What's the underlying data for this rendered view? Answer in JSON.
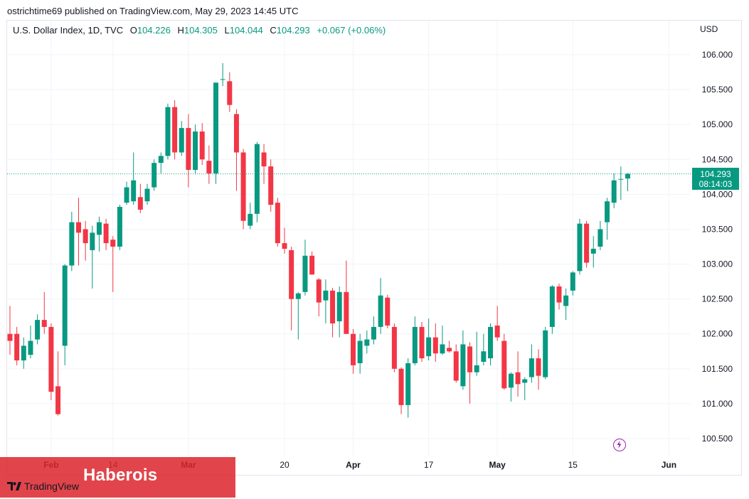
{
  "publisher": "ostrichtime69 published on TradingView.com, May 29, 2023 14:45 UTC",
  "legend": {
    "symbol": "U.S. Dollar Index, 1D, TVC",
    "o_label": "O",
    "open": "104.226",
    "h_label": "H",
    "high": "104.305",
    "l_label": "L",
    "low": "104.044",
    "c_label": "C",
    "close": "104.293",
    "change": "+0.067 (+0.06%)"
  },
  "currency": "USD",
  "last_price": {
    "value": "104.293",
    "countdown": "08:14:03"
  },
  "watermark": "Haberois",
  "logo_text": "TradingView",
  "colors": {
    "up": "#089981",
    "down": "#f23645",
    "grid": "#f0f3fa",
    "axis_text": "#131722"
  },
  "chart_data": {
    "type": "candlestick",
    "title": "U.S. Dollar Index, 1D, TVC",
    "ylabel": "USD",
    "ylim": [
      100.25,
      106.4
    ],
    "yticks": [
      106.0,
      105.5,
      105.0,
      104.5,
      104.0,
      103.5,
      103.0,
      102.5,
      102.0,
      101.5,
      101.0,
      100.5
    ],
    "ytick_labels": [
      "106.000",
      "105.500",
      "105.000",
      "104.500",
      "104.000",
      "103.500",
      "103.000",
      "102.500",
      "102.000",
      "101.500",
      "101.000",
      "100.500"
    ],
    "xtick_labels": [
      {
        "label": "Feb",
        "index": 6
      },
      {
        "label": "14",
        "index": 15
      },
      {
        "label": "Mar",
        "index": 26
      },
      {
        "label": "20",
        "index": 40
      },
      {
        "label": "Apr",
        "index": 50
      },
      {
        "label": "17",
        "index": 61
      },
      {
        "label": "May",
        "index": 71
      },
      {
        "label": "15",
        "index": 82
      },
      {
        "label": "Jun",
        "index": 96
      }
    ],
    "last_close": 104.293,
    "candles": [
      {
        "o": 102.0,
        "h": 102.4,
        "l": 101.7,
        "c": 101.9
      },
      {
        "o": 102.0,
        "h": 102.1,
        "l": 101.55,
        "c": 101.62
      },
      {
        "o": 101.62,
        "h": 101.95,
        "l": 101.5,
        "c": 101.83
      },
      {
        "o": 101.7,
        "h": 102.12,
        "l": 101.65,
        "c": 101.9
      },
      {
        "o": 101.92,
        "h": 102.28,
        "l": 101.85,
        "c": 102.2
      },
      {
        "o": 102.2,
        "h": 102.6,
        "l": 102.0,
        "c": 102.1
      },
      {
        "o": 102.1,
        "h": 102.15,
        "l": 101.05,
        "c": 101.17
      },
      {
        "o": 101.25,
        "h": 101.75,
        "l": 100.83,
        "c": 100.85
      },
      {
        "o": 101.83,
        "h": 103.0,
        "l": 101.55,
        "c": 102.98
      },
      {
        "o": 102.98,
        "h": 103.75,
        "l": 102.9,
        "c": 103.6
      },
      {
        "o": 103.6,
        "h": 103.95,
        "l": 102.98,
        "c": 103.45
      },
      {
        "o": 103.5,
        "h": 103.62,
        "l": 103.05,
        "c": 103.3
      },
      {
        "o": 103.2,
        "h": 103.55,
        "l": 102.65,
        "c": 103.45
      },
      {
        "o": 103.42,
        "h": 103.68,
        "l": 103.18,
        "c": 103.6
      },
      {
        "o": 103.58,
        "h": 103.65,
        "l": 103.2,
        "c": 103.3
      },
      {
        "o": 103.35,
        "h": 103.4,
        "l": 102.6,
        "c": 103.25
      },
      {
        "o": 103.25,
        "h": 103.85,
        "l": 103.2,
        "c": 103.82
      },
      {
        "o": 103.88,
        "h": 104.18,
        "l": 103.85,
        "c": 104.1
      },
      {
        "o": 103.9,
        "h": 104.6,
        "l": 103.85,
        "c": 104.2
      },
      {
        "o": 103.96,
        "h": 104.15,
        "l": 103.73,
        "c": 103.78
      },
      {
        "o": 103.9,
        "h": 104.15,
        "l": 103.85,
        "c": 104.08
      },
      {
        "o": 104.1,
        "h": 104.5,
        "l": 104.05,
        "c": 104.45
      },
      {
        "o": 104.45,
        "h": 104.6,
        "l": 104.3,
        "c": 104.55
      },
      {
        "o": 104.55,
        "h": 105.3,
        "l": 104.5,
        "c": 105.25
      },
      {
        "o": 105.25,
        "h": 105.35,
        "l": 104.5,
        "c": 104.6
      },
      {
        "o": 104.6,
        "h": 105.05,
        "l": 104.55,
        "c": 104.95
      },
      {
        "o": 104.95,
        "h": 105.15,
        "l": 104.1,
        "c": 104.35
      },
      {
        "o": 104.35,
        "h": 105.0,
        "l": 104.3,
        "c": 104.9
      },
      {
        "o": 104.9,
        "h": 105.02,
        "l": 104.42,
        "c": 104.5
      },
      {
        "o": 104.48,
        "h": 104.7,
        "l": 104.15,
        "c": 104.3
      },
      {
        "o": 104.3,
        "h": 105.6,
        "l": 104.15,
        "c": 105.6
      },
      {
        "o": 105.65,
        "h": 105.88,
        "l": 105.55,
        "c": 105.65
      },
      {
        "o": 105.62,
        "h": 105.75,
        "l": 105.18,
        "c": 105.28
      },
      {
        "o": 105.15,
        "h": 105.22,
        "l": 104.05,
        "c": 104.6
      },
      {
        "o": 104.6,
        "h": 104.65,
        "l": 103.5,
        "c": 103.62
      },
      {
        "o": 103.55,
        "h": 103.88,
        "l": 103.5,
        "c": 103.72
      },
      {
        "o": 103.72,
        "h": 104.75,
        "l": 103.6,
        "c": 104.72
      },
      {
        "o": 104.6,
        "h": 104.72,
        "l": 104.15,
        "c": 104.4
      },
      {
        "o": 104.4,
        "h": 104.5,
        "l": 103.75,
        "c": 103.85
      },
      {
        "o": 103.88,
        "h": 103.95,
        "l": 103.25,
        "c": 103.3
      },
      {
        "o": 103.3,
        "h": 103.52,
        "l": 103.15,
        "c": 103.22
      },
      {
        "o": 103.2,
        "h": 103.25,
        "l": 102.05,
        "c": 102.5
      },
      {
        "o": 102.5,
        "h": 102.6,
        "l": 101.92,
        "c": 102.58
      },
      {
        "o": 102.6,
        "h": 103.35,
        "l": 102.55,
        "c": 103.12
      },
      {
        "o": 103.12,
        "h": 103.18,
        "l": 102.85,
        "c": 102.85
      },
      {
        "o": 102.78,
        "h": 102.8,
        "l": 102.25,
        "c": 102.45
      },
      {
        "o": 102.48,
        "h": 102.78,
        "l": 102.15,
        "c": 102.62
      },
      {
        "o": 102.62,
        "h": 102.66,
        "l": 101.95,
        "c": 102.15
      },
      {
        "o": 102.18,
        "h": 102.68,
        "l": 101.95,
        "c": 102.6
      },
      {
        "o": 102.6,
        "h": 103.05,
        "l": 102.0,
        "c": 102.0
      },
      {
        "o": 102.0,
        "h": 102.07,
        "l": 101.43,
        "c": 101.55
      },
      {
        "o": 101.58,
        "h": 102.0,
        "l": 101.43,
        "c": 101.9
      },
      {
        "o": 101.83,
        "h": 102.05,
        "l": 101.72,
        "c": 101.92
      },
      {
        "o": 101.92,
        "h": 102.25,
        "l": 101.85,
        "c": 102.1
      },
      {
        "o": 102.1,
        "h": 102.8,
        "l": 102.0,
        "c": 102.55
      },
      {
        "o": 102.52,
        "h": 102.56,
        "l": 102.08,
        "c": 102.12
      },
      {
        "o": 102.1,
        "h": 102.15,
        "l": 101.45,
        "c": 101.5
      },
      {
        "o": 101.5,
        "h": 101.52,
        "l": 100.85,
        "c": 100.98
      },
      {
        "o": 100.98,
        "h": 101.65,
        "l": 100.8,
        "c": 101.58
      },
      {
        "o": 101.58,
        "h": 102.25,
        "l": 101.55,
        "c": 102.1
      },
      {
        "o": 102.1,
        "h": 102.17,
        "l": 101.6,
        "c": 101.65
      },
      {
        "o": 101.68,
        "h": 102.22,
        "l": 101.62,
        "c": 101.95
      },
      {
        "o": 101.95,
        "h": 102.15,
        "l": 101.6,
        "c": 101.72
      },
      {
        "o": 101.72,
        "h": 102.12,
        "l": 101.7,
        "c": 101.85
      },
      {
        "o": 101.8,
        "h": 101.9,
        "l": 101.73,
        "c": 101.75
      },
      {
        "o": 101.75,
        "h": 101.85,
        "l": 101.3,
        "c": 101.33
      },
      {
        "o": 101.25,
        "h": 102.05,
        "l": 101.2,
        "c": 101.85
      },
      {
        "o": 101.82,
        "h": 101.88,
        "l": 101.0,
        "c": 101.45
      },
      {
        "o": 101.45,
        "h": 102.03,
        "l": 101.4,
        "c": 101.55
      },
      {
        "o": 101.6,
        "h": 102.0,
        "l": 101.55,
        "c": 101.75
      },
      {
        "o": 101.65,
        "h": 102.15,
        "l": 101.55,
        "c": 102.1
      },
      {
        "o": 102.12,
        "h": 102.4,
        "l": 101.9,
        "c": 101.95
      },
      {
        "o": 101.9,
        "h": 102.0,
        "l": 101.2,
        "c": 101.22
      },
      {
        "o": 101.23,
        "h": 101.45,
        "l": 101.03,
        "c": 101.43
      },
      {
        "o": 101.45,
        "h": 101.75,
        "l": 101.1,
        "c": 101.28
      },
      {
        "o": 101.3,
        "h": 101.38,
        "l": 101.05,
        "c": 101.35
      },
      {
        "o": 101.38,
        "h": 101.85,
        "l": 101.3,
        "c": 101.65
      },
      {
        "o": 101.65,
        "h": 101.78,
        "l": 101.2,
        "c": 101.4
      },
      {
        "o": 101.38,
        "h": 102.1,
        "l": 101.35,
        "c": 102.05
      },
      {
        "o": 102.1,
        "h": 102.7,
        "l": 102.0,
        "c": 102.68
      },
      {
        "o": 102.68,
        "h": 102.72,
        "l": 102.35,
        "c": 102.45
      },
      {
        "o": 102.4,
        "h": 102.65,
        "l": 102.2,
        "c": 102.55
      },
      {
        "o": 102.62,
        "h": 102.9,
        "l": 102.55,
        "c": 102.88
      },
      {
        "o": 102.9,
        "h": 103.65,
        "l": 102.85,
        "c": 103.58
      },
      {
        "o": 103.58,
        "h": 103.62,
        "l": 102.95,
        "c": 103.02
      },
      {
        "o": 103.15,
        "h": 103.4,
        "l": 102.95,
        "c": 103.22
      },
      {
        "o": 103.25,
        "h": 103.62,
        "l": 103.2,
        "c": 103.5
      },
      {
        "o": 103.6,
        "h": 103.95,
        "l": 103.35,
        "c": 103.9
      },
      {
        "o": 103.88,
        "h": 104.3,
        "l": 103.8,
        "c": 104.2
      },
      {
        "o": 104.22,
        "h": 104.4,
        "l": 103.92,
        "c": 104.22
      },
      {
        "o": 104.226,
        "h": 104.305,
        "l": 104.044,
        "c": 104.293
      }
    ]
  }
}
